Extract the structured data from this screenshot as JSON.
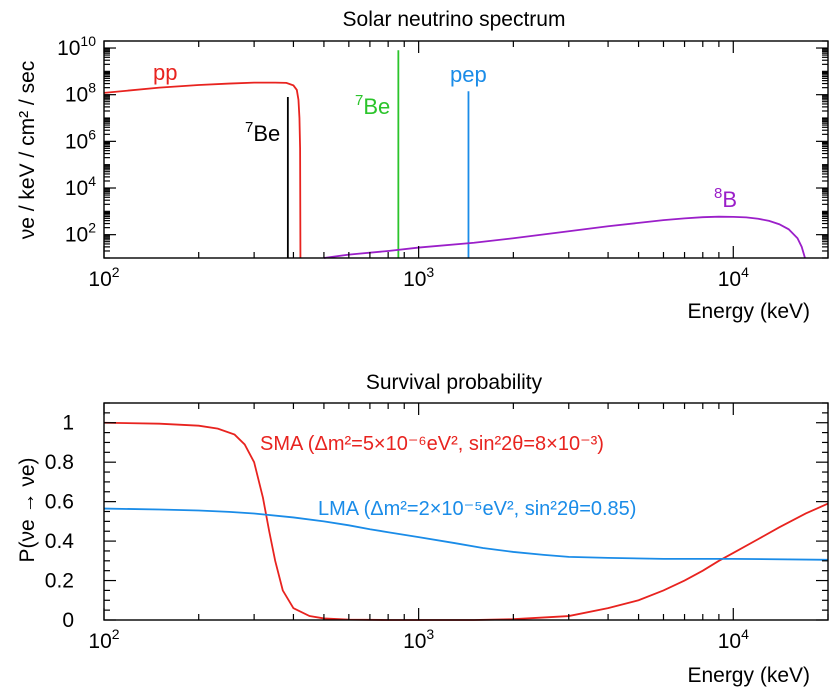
{
  "chart_data": [
    {
      "type": "line",
      "title": "Solar neutrino spectrum",
      "xlabel": "Energy (keV)",
      "ylabel": "νe / keV / cm² / sec",
      "xscale": "log",
      "yscale": "log",
      "xlim": [
        100,
        20000
      ],
      "ylim": [
        10,
        20000000000
      ],
      "grid": false,
      "legend": "inline labels",
      "x_ticks": [
        {
          "value": 100,
          "base": "10",
          "exp": "2"
        },
        {
          "value": 1000,
          "base": "10",
          "exp": "3"
        },
        {
          "value": 10000,
          "base": "10",
          "exp": "4"
        }
      ],
      "y_ticks": [
        {
          "value": 100,
          "base": "10",
          "exp": "2"
        },
        {
          "value": 10000,
          "base": "10",
          "exp": "4"
        },
        {
          "value": 1000000,
          "base": "10",
          "exp": "6"
        },
        {
          "value": 100000000,
          "base": "10",
          "exp": "8"
        },
        {
          "value": 10000000000,
          "base": "10",
          "exp": "10"
        }
      ],
      "series": [
        {
          "name": "pp",
          "label": {
            "text": "pp"
          },
          "color": "#e8231f",
          "style": "curve",
          "points": [
            [
              100,
              120000000
            ],
            [
              150,
              200000000
            ],
            [
              200,
              260000000
            ],
            [
              250,
              300000000
            ],
            [
              300,
              330000000
            ],
            [
              350,
              330000000
            ],
            [
              380,
              320000000
            ],
            [
              400,
              250000000
            ],
            [
              410,
              160000000
            ],
            [
              415,
              60000000
            ],
            [
              418,
              10000000
            ],
            [
              420,
              500000
            ],
            [
              421,
              10
            ]
          ]
        },
        {
          "name": "7Be (384 keV)",
          "label": {
            "pre": "",
            "sup": "7",
            "text": "Be"
          },
          "color": "#000000",
          "style": "line",
          "energy": 384,
          "peak": 80000000
        },
        {
          "name": "7Be (862 keV)",
          "label": {
            "pre": "",
            "sup": "7",
            "text": "Be"
          },
          "color": "#2bc42b",
          "style": "line",
          "energy": 862,
          "peak": 8000000000
        },
        {
          "name": "pep",
          "label": {
            "text": "pep"
          },
          "color": "#1a8ce8",
          "style": "line",
          "energy": 1440,
          "peak": 140000000
        },
        {
          "name": "8B",
          "label": {
            "pre": "",
            "sup": "8",
            "text": "B"
          },
          "color": "#9b1fc9",
          "style": "curve",
          "points": [
            [
              500,
              10
            ],
            [
              600,
              14
            ],
            [
              800,
              20
            ],
            [
              1000,
              28
            ],
            [
              1500,
              45
            ],
            [
              2000,
              70
            ],
            [
              3000,
              140
            ],
            [
              4000,
              230
            ],
            [
              5000,
              320
            ],
            [
              6000,
              420
            ],
            [
              7000,
              500
            ],
            [
              8000,
              560
            ],
            [
              9000,
              590
            ],
            [
              10000,
              580
            ],
            [
              11000,
              550
            ],
            [
              12000,
              480
            ],
            [
              13000,
              390
            ],
            [
              14000,
              280
            ],
            [
              15000,
              170
            ],
            [
              16000,
              70
            ],
            [
              16500,
              30
            ],
            [
              16900,
              10
            ]
          ]
        }
      ]
    },
    {
      "type": "line",
      "title": "Survival probability",
      "xlabel": "Energy (keV)",
      "ylabel": "P(νe → νe)",
      "xscale": "log",
      "yscale": "linear",
      "xlim": [
        100,
        20000
      ],
      "ylim": [
        0,
        1.1
      ],
      "grid": false,
      "legend": "inline labels",
      "x_ticks": [
        {
          "value": 100,
          "base": "10",
          "exp": "2"
        },
        {
          "value": 1000,
          "base": "10",
          "exp": "3"
        },
        {
          "value": 10000,
          "base": "10",
          "exp": "4"
        }
      ],
      "y_ticks": [
        {
          "value": 0,
          "label": "0"
        },
        {
          "value": 0.2,
          "label": "0.2"
        },
        {
          "value": 0.4,
          "label": "0.4"
        },
        {
          "value": 0.6,
          "label": "0.6"
        },
        {
          "value": 0.8,
          "label": "0.8"
        },
        {
          "value": 1,
          "label": "1"
        }
      ],
      "series": [
        {
          "name": "SMA",
          "label": "SMA (Δm²=5×10⁻⁶eV², sin²2θ=8×10⁻³)",
          "color": "#e8231f",
          "style": "curve",
          "points": [
            [
              100,
              1.0
            ],
            [
              150,
              0.995
            ],
            [
              200,
              0.985
            ],
            [
              230,
              0.97
            ],
            [
              260,
              0.94
            ],
            [
              280,
              0.89
            ],
            [
              300,
              0.8
            ],
            [
              320,
              0.62
            ],
            [
              335,
              0.45
            ],
            [
              350,
              0.3
            ],
            [
              370,
              0.15
            ],
            [
              400,
              0.06
            ],
            [
              450,
              0.02
            ],
            [
              500,
              0.008
            ],
            [
              600,
              0.002
            ],
            [
              800,
              0.0
            ],
            [
              1000,
              0.0
            ],
            [
              1500,
              0.0
            ],
            [
              2000,
              0.004
            ],
            [
              3000,
              0.02
            ],
            [
              4000,
              0.06
            ],
            [
              5000,
              0.1
            ],
            [
              6000,
              0.15
            ],
            [
              7000,
              0.2
            ],
            [
              8000,
              0.25
            ],
            [
              9000,
              0.3
            ],
            [
              10000,
              0.34
            ],
            [
              12000,
              0.41
            ],
            [
              14000,
              0.47
            ],
            [
              17000,
              0.54
            ],
            [
              20000,
              0.59
            ]
          ]
        },
        {
          "name": "LMA",
          "label": "LMA (Δm²=2×10⁻⁵eV², sin²2θ=0.85)",
          "color": "#1a8ce8",
          "style": "curve",
          "points": [
            [
              100,
              0.565
            ],
            [
              150,
              0.56
            ],
            [
              200,
              0.555
            ],
            [
              250,
              0.548
            ],
            [
              300,
              0.54
            ],
            [
              400,
              0.52
            ],
            [
              500,
              0.5
            ],
            [
              600,
              0.48
            ],
            [
              700,
              0.46
            ],
            [
              800,
              0.445
            ],
            [
              1000,
              0.42
            ],
            [
              1300,
              0.39
            ],
            [
              1600,
              0.365
            ],
            [
              2000,
              0.345
            ],
            [
              2500,
              0.33
            ],
            [
              3000,
              0.32
            ],
            [
              4000,
              0.315
            ],
            [
              6000,
              0.31
            ],
            [
              10000,
              0.31
            ],
            [
              20000,
              0.305
            ]
          ]
        }
      ]
    }
  ]
}
